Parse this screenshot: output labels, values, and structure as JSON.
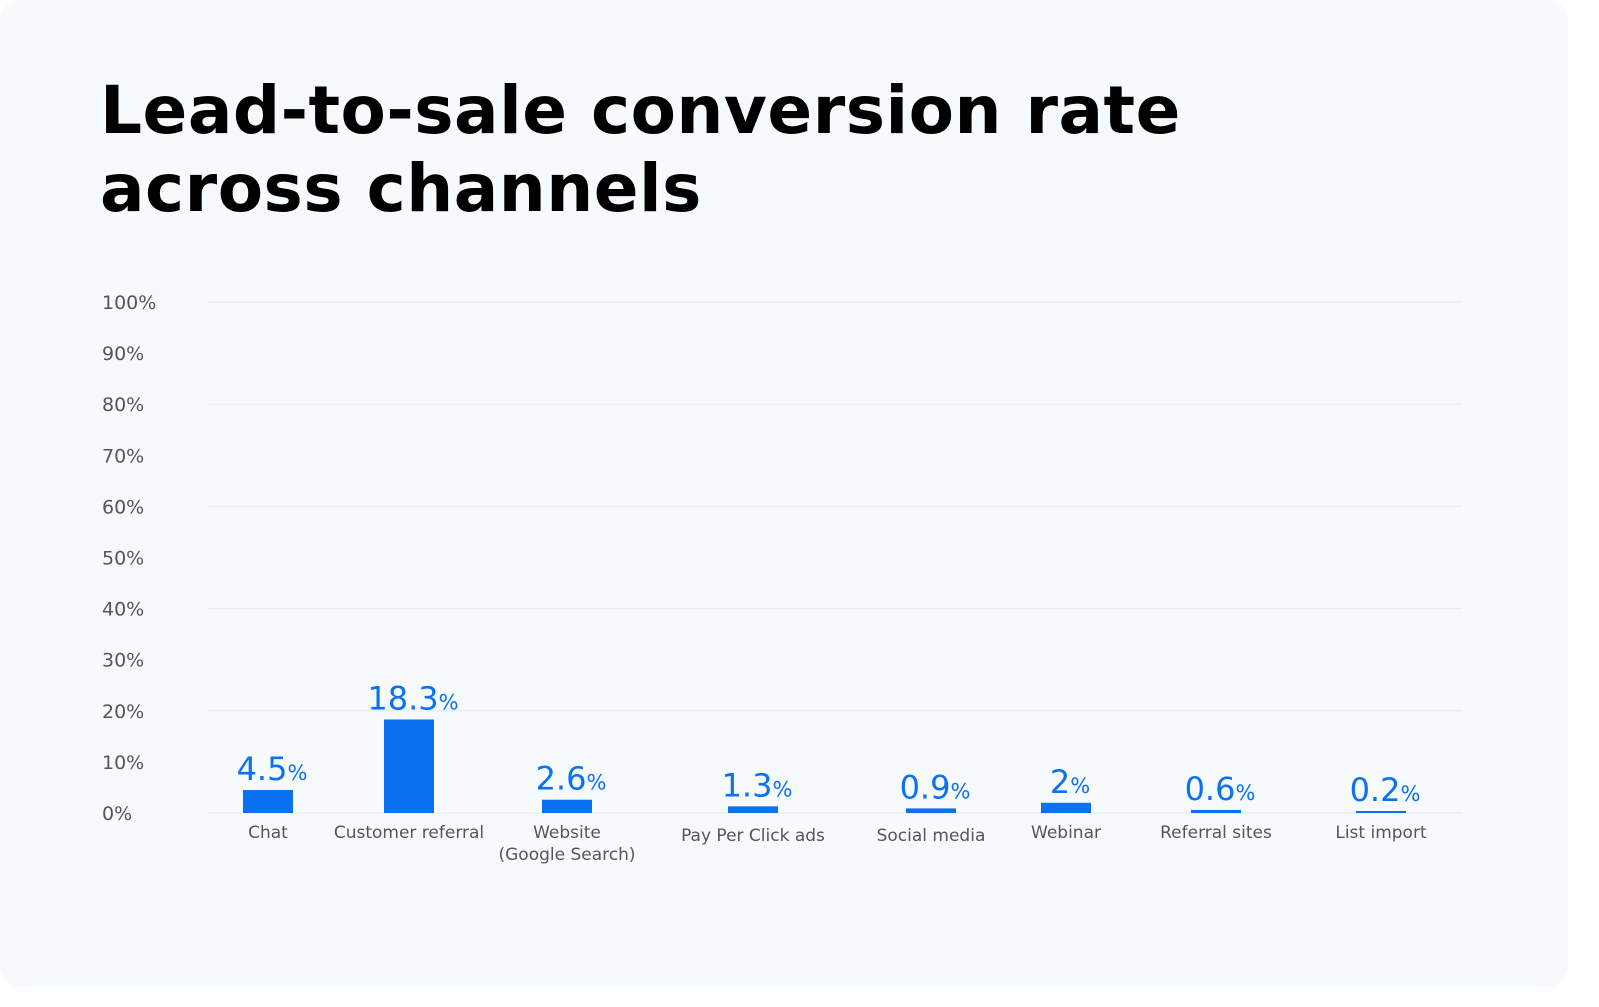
{
  "chart_data": {
    "type": "bar",
    "title": "Lead-to-sale conversion rate across channels",
    "categories": [
      "Chat",
      "Customer referral",
      "Website\n(Google Search)",
      "Pay Per Click ads",
      "Social media",
      "Webinar",
      "Referral sites",
      "List import"
    ],
    "values": [
      4.5,
      18.3,
      2.6,
      1.3,
      0.9,
      2,
      0.6,
      0.2
    ],
    "value_labels": [
      "4.5",
      "18.3",
      "2.6",
      "1.3",
      "0.9",
      "2",
      "0.6",
      "0.2"
    ],
    "value_suffix": "%",
    "ylim": [
      0,
      100
    ],
    "yticks": [
      "0%",
      "10%",
      "20%",
      "30%",
      "40%",
      "50%",
      "60%",
      "70%",
      "80%",
      "90%",
      "100%"
    ],
    "gridlines": [
      0,
      20,
      40,
      60,
      80,
      100
    ],
    "grid": true,
    "xlabel": "",
    "ylabel": "",
    "colors": {
      "bar": "#0a72f0",
      "grid": "#e6ebf0",
      "background": "#f6fafd"
    }
  }
}
